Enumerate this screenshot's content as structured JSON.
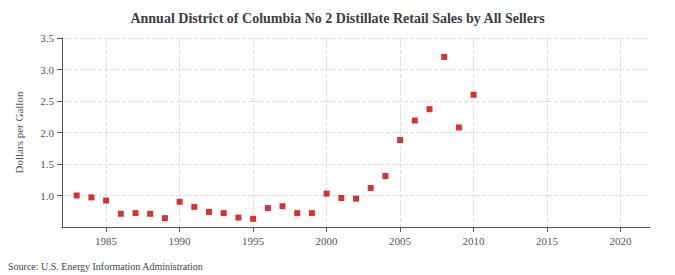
{
  "chart_data": {
    "type": "scatter",
    "title": "Annual District of Columbia No 2 Distillate Retail Sales by All Sellers",
    "ylabel": "Dollars per Gallon",
    "source": "Source: U.S. Energy Information Administration",
    "x": [
      1983,
      1984,
      1985,
      1986,
      1987,
      1988,
      1989,
      1990,
      1991,
      1992,
      1993,
      1994,
      1995,
      1996,
      1997,
      1998,
      1999,
      2000,
      2001,
      2002,
      2003,
      2004,
      2005,
      2006,
      2007,
      2008,
      2009,
      2010
    ],
    "values": [
      1.0,
      0.97,
      0.92,
      0.71,
      0.72,
      0.71,
      0.64,
      0.9,
      0.82,
      0.74,
      0.72,
      0.65,
      0.63,
      0.8,
      0.83,
      0.72,
      0.72,
      1.03,
      0.96,
      0.95,
      1.12,
      1.31,
      1.88,
      2.19,
      2.37,
      3.2,
      2.08,
      2.6
    ],
    "color": "#cc0000",
    "marker": "square",
    "xlim": [
      1982,
      2022
    ],
    "ylim": [
      0.5,
      3.5
    ],
    "xticks": [
      1985,
      1990,
      1995,
      2000,
      2005,
      2010,
      2015,
      2020
    ],
    "yticks": [
      {
        "value": 1.0,
        "label": "1.0"
      },
      1.5,
      {
        "value": 2.0,
        "label": "2.0"
      },
      2.5,
      {
        "value": 3.0,
        "label": "3.0"
      },
      3.5
    ],
    "grid": true
  }
}
